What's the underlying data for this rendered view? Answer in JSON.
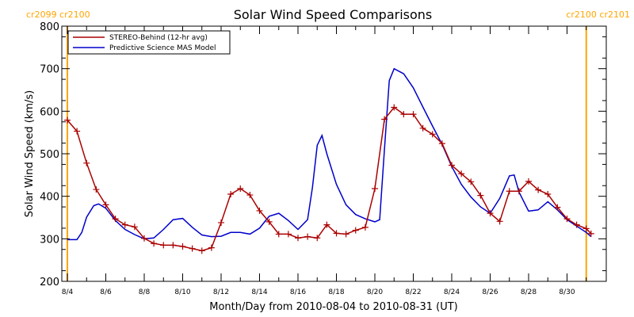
{
  "chart_data": {
    "type": "line",
    "title": "Solar Wind Speed Comparisons",
    "xlabel": "Month/Day from 2010-08-04 to 2010-08-31 (UT)",
    "ylabel": "Solar Wind Speed (km/s)",
    "ylim": [
      200,
      800
    ],
    "yticks": [
      200,
      300,
      400,
      500,
      600,
      700,
      800
    ],
    "xlim": [
      "2010-08-04",
      "2010-08-31"
    ],
    "xticks": [
      {
        "date": "2010-08-04",
        "label": "8/4"
      },
      {
        "date": "2010-08-06",
        "label": "8/6"
      },
      {
        "date": "2010-08-08",
        "label": "8/8"
      },
      {
        "date": "2010-08-10",
        "label": "8/10"
      },
      {
        "date": "2010-08-12",
        "label": "8/12"
      },
      {
        "date": "2010-08-14",
        "label": "8/14"
      },
      {
        "date": "2010-08-16",
        "label": "8/16"
      },
      {
        "date": "2010-08-18",
        "label": "8/18"
      },
      {
        "date": "2010-08-20",
        "label": "8/20"
      },
      {
        "date": "2010-08-22",
        "label": "8/22"
      },
      {
        "date": "2010-08-24",
        "label": "8/24"
      },
      {
        "date": "2010-08-26",
        "label": "8/26"
      },
      {
        "date": "2010-08-28",
        "label": "8/28"
      },
      {
        "date": "2010-08-30",
        "label": "8/30"
      }
    ],
    "legend_position": "top-left",
    "grid": false,
    "markers": [
      {
        "date": "2010-08-04",
        "label": "cr2099 cr2100",
        "label_side": "left",
        "color": "#ffa500"
      },
      {
        "date": "2010-08-31",
        "label": "cr2100 cr2101",
        "label_side": "right",
        "color": "#ffa500"
      }
    ],
    "series": [
      {
        "name": "STEREO-Behind (12-hr avg)",
        "color": "#aa0000",
        "marker": "plus",
        "points": [
          {
            "x": "2010-08-04 00:00",
            "y": 579
          },
          {
            "x": "2010-08-04 12:00",
            "y": 553
          },
          {
            "x": "2010-08-05 00:00",
            "y": 478
          },
          {
            "x": "2010-08-05 12:00",
            "y": 416
          },
          {
            "x": "2010-08-06 00:00",
            "y": 380
          },
          {
            "x": "2010-08-06 12:00",
            "y": 347
          },
          {
            "x": "2010-08-07 00:00",
            "y": 333
          },
          {
            "x": "2010-08-07 12:00",
            "y": 328
          },
          {
            "x": "2010-08-08 00:00",
            "y": 301
          },
          {
            "x": "2010-08-08 12:00",
            "y": 289
          },
          {
            "x": "2010-08-09 00:00",
            "y": 285
          },
          {
            "x": "2010-08-09 12:00",
            "y": 285
          },
          {
            "x": "2010-08-10 00:00",
            "y": 282
          },
          {
            "x": "2010-08-10 12:00",
            "y": 277
          },
          {
            "x": "2010-08-11 00:00",
            "y": 272
          },
          {
            "x": "2010-08-11 12:00",
            "y": 279
          },
          {
            "x": "2010-08-12 00:00",
            "y": 338
          },
          {
            "x": "2010-08-12 12:00",
            "y": 405
          },
          {
            "x": "2010-08-13 00:00",
            "y": 418
          },
          {
            "x": "2010-08-13 12:00",
            "y": 403
          },
          {
            "x": "2010-08-14 00:00",
            "y": 366
          },
          {
            "x": "2010-08-14 12:00",
            "y": 340
          },
          {
            "x": "2010-08-15 00:00",
            "y": 311
          },
          {
            "x": "2010-08-15 12:00",
            "y": 311
          },
          {
            "x": "2010-08-16 00:00",
            "y": 302
          },
          {
            "x": "2010-08-16 12:00",
            "y": 305
          },
          {
            "x": "2010-08-17 00:00",
            "y": 302
          },
          {
            "x": "2010-08-17 12:00",
            "y": 333
          },
          {
            "x": "2010-08-18 00:00",
            "y": 313
          },
          {
            "x": "2010-08-18 12:00",
            "y": 311
          },
          {
            "x": "2010-08-19 00:00",
            "y": 320
          },
          {
            "x": "2010-08-19 12:00",
            "y": 327
          },
          {
            "x": "2010-08-20 00:00",
            "y": 418
          },
          {
            "x": "2010-08-20 12:00",
            "y": 581
          },
          {
            "x": "2010-08-21 00:00",
            "y": 609
          },
          {
            "x": "2010-08-21 12:00",
            "y": 593
          },
          {
            "x": "2010-08-22 00:00",
            "y": 593
          },
          {
            "x": "2010-08-22 12:00",
            "y": 560
          },
          {
            "x": "2010-08-23 00:00",
            "y": 546
          },
          {
            "x": "2010-08-23 12:00",
            "y": 524
          },
          {
            "x": "2010-08-24 00:00",
            "y": 473
          },
          {
            "x": "2010-08-24 12:00",
            "y": 453
          },
          {
            "x": "2010-08-25 00:00",
            "y": 434
          },
          {
            "x": "2010-08-25 12:00",
            "y": 402
          },
          {
            "x": "2010-08-26 00:00",
            "y": 360
          },
          {
            "x": "2010-08-26 12:00",
            "y": 341
          },
          {
            "x": "2010-08-27 00:00",
            "y": 412
          },
          {
            "x": "2010-08-27 12:00",
            "y": 412
          },
          {
            "x": "2010-08-28 00:00",
            "y": 435
          },
          {
            "x": "2010-08-28 12:00",
            "y": 415
          },
          {
            "x": "2010-08-29 00:00",
            "y": 405
          },
          {
            "x": "2010-08-29 12:00",
            "y": 374
          },
          {
            "x": "2010-08-30 00:00",
            "y": 347
          },
          {
            "x": "2010-08-30 12:00",
            "y": 333
          },
          {
            "x": "2010-08-31 00:00",
            "y": 324
          },
          {
            "x": "2010-08-31 06:00",
            "y": 312
          }
        ]
      },
      {
        "name": "Predictive Science MAS Model",
        "color": "#0000cc",
        "marker": "none",
        "points": [
          {
            "x": "2010-08-04 00:00",
            "y": 298
          },
          {
            "x": "2010-08-04 12:00",
            "y": 298
          },
          {
            "x": "2010-08-04 18:00",
            "y": 315
          },
          {
            "x": "2010-08-05 00:00",
            "y": 351
          },
          {
            "x": "2010-08-05 09:00",
            "y": 378
          },
          {
            "x": "2010-08-05 15:00",
            "y": 382
          },
          {
            "x": "2010-08-06 00:00",
            "y": 372
          },
          {
            "x": "2010-08-06 12:00",
            "y": 343
          },
          {
            "x": "2010-08-07 00:00",
            "y": 322
          },
          {
            "x": "2010-08-07 12:00",
            "y": 310
          },
          {
            "x": "2010-08-08 00:00",
            "y": 300
          },
          {
            "x": "2010-08-08 12:00",
            "y": 302
          },
          {
            "x": "2010-08-09 00:00",
            "y": 322
          },
          {
            "x": "2010-08-09 12:00",
            "y": 345
          },
          {
            "x": "2010-08-10 00:00",
            "y": 348
          },
          {
            "x": "2010-08-10 12:00",
            "y": 327
          },
          {
            "x": "2010-08-11 00:00",
            "y": 309
          },
          {
            "x": "2010-08-11 12:00",
            "y": 305
          },
          {
            "x": "2010-08-12 00:00",
            "y": 306
          },
          {
            "x": "2010-08-12 12:00",
            "y": 315
          },
          {
            "x": "2010-08-13 00:00",
            "y": 315
          },
          {
            "x": "2010-08-13 12:00",
            "y": 311
          },
          {
            "x": "2010-08-14 00:00",
            "y": 325
          },
          {
            "x": "2010-08-14 12:00",
            "y": 353
          },
          {
            "x": "2010-08-15 00:00",
            "y": 360
          },
          {
            "x": "2010-08-15 12:00",
            "y": 343
          },
          {
            "x": "2010-08-16 00:00",
            "y": 322
          },
          {
            "x": "2010-08-16 12:00",
            "y": 345
          },
          {
            "x": "2010-08-16 18:00",
            "y": 420
          },
          {
            "x": "2010-08-17 00:00",
            "y": 520
          },
          {
            "x": "2010-08-17 06:00",
            "y": 543
          },
          {
            "x": "2010-08-17 12:00",
            "y": 500
          },
          {
            "x": "2010-08-18 00:00",
            "y": 428
          },
          {
            "x": "2010-08-18 12:00",
            "y": 380
          },
          {
            "x": "2010-08-19 00:00",
            "y": 357
          },
          {
            "x": "2010-08-19 12:00",
            "y": 347
          },
          {
            "x": "2010-08-20 00:00",
            "y": 340
          },
          {
            "x": "2010-08-20 06:00",
            "y": 345
          },
          {
            "x": "2010-08-20 12:00",
            "y": 510
          },
          {
            "x": "2010-08-20 18:00",
            "y": 672
          },
          {
            "x": "2010-08-21 00:00",
            "y": 700
          },
          {
            "x": "2010-08-21 12:00",
            "y": 688
          },
          {
            "x": "2010-08-22 00:00",
            "y": 655
          },
          {
            "x": "2010-08-22 12:00",
            "y": 610
          },
          {
            "x": "2010-08-23 00:00",
            "y": 565
          },
          {
            "x": "2010-08-23 12:00",
            "y": 522
          },
          {
            "x": "2010-08-24 00:00",
            "y": 470
          },
          {
            "x": "2010-08-24 12:00",
            "y": 428
          },
          {
            "x": "2010-08-25 00:00",
            "y": 398
          },
          {
            "x": "2010-08-25 12:00",
            "y": 375
          },
          {
            "x": "2010-08-26 00:00",
            "y": 360
          },
          {
            "x": "2010-08-26 12:00",
            "y": 395
          },
          {
            "x": "2010-08-27 00:00",
            "y": 448
          },
          {
            "x": "2010-08-27 06:00",
            "y": 450
          },
          {
            "x": "2010-08-27 12:00",
            "y": 410
          },
          {
            "x": "2010-08-28 00:00",
            "y": 365
          },
          {
            "x": "2010-08-28 12:00",
            "y": 368
          },
          {
            "x": "2010-08-29 00:00",
            "y": 387
          },
          {
            "x": "2010-08-29 12:00",
            "y": 368
          },
          {
            "x": "2010-08-30 00:00",
            "y": 345
          },
          {
            "x": "2010-08-30 12:00",
            "y": 330
          },
          {
            "x": "2010-08-31 00:00",
            "y": 315
          },
          {
            "x": "2010-08-31 06:00",
            "y": 305
          }
        ]
      }
    ]
  }
}
